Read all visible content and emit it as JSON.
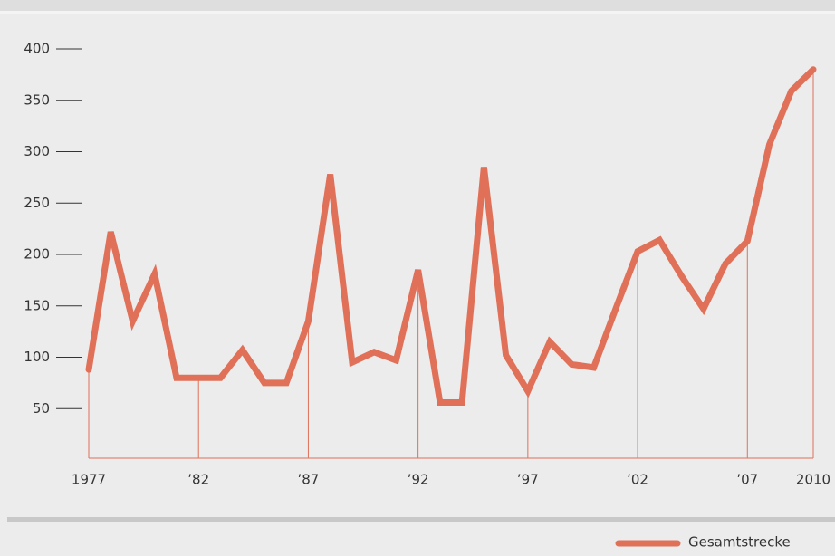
{
  "chart_data": {
    "type": "line",
    "x": [
      1977,
      1978,
      1979,
      1980,
      1981,
      1982,
      1983,
      1984,
      1985,
      1986,
      1987,
      1988,
      1989,
      1990,
      1991,
      1992,
      1993,
      1994,
      1995,
      1996,
      1997,
      1998,
      1999,
      2000,
      2001,
      2002,
      2003,
      2004,
      2005,
      2006,
      2007,
      2008,
      2009,
      2010
    ],
    "series": [
      {
        "name": "Gesamtstrecke",
        "color": "#e07058",
        "values": [
          88,
          222,
          135,
          181,
          80,
          80,
          80,
          107,
          75,
          75,
          135,
          278,
          95,
          105,
          97,
          185,
          56,
          56,
          285,
          102,
          67,
          115,
          93,
          90,
          147,
          203,
          214,
          179,
          147,
          191,
          213,
          307,
          359,
          380
        ]
      }
    ],
    "xlim": [
      1977,
      2010
    ],
    "xticks": [
      1977,
      {
        "value": 1982,
        "label": "’82"
      },
      {
        "value": 1987,
        "label": "’87"
      },
      {
        "value": 1992,
        "label": "’92"
      },
      {
        "value": 1997,
        "label": "’97"
      },
      {
        "value": 2002,
        "label": "’02"
      },
      {
        "value": 2007,
        "label": "’07"
      },
      2010
    ],
    "ylim": [
      0,
      400
    ],
    "yticks": [
      50,
      100,
      150,
      200,
      250,
      300,
      350,
      400
    ]
  }
}
